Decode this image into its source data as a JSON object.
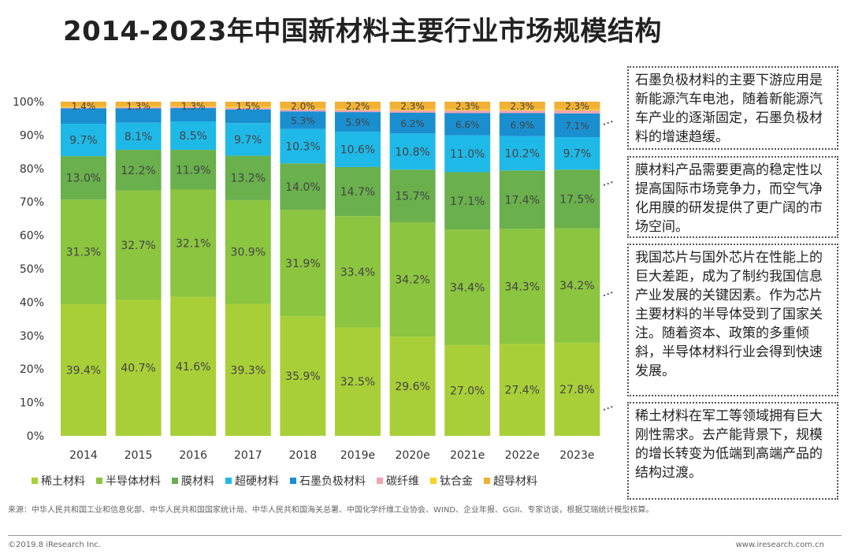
{
  "title": "2014-2023年中国新材料主要行业市场规模结构",
  "chart_data": {
    "type": "bar",
    "stacked": true,
    "categories": [
      "2014",
      "2015",
      "2016",
      "2017",
      "2018",
      "2019e",
      "2020e",
      "2021e",
      "2022e",
      "2023e"
    ],
    "y_ticks": [
      "0%",
      "10%",
      "20%",
      "30%",
      "40%",
      "50%",
      "60%",
      "70%",
      "80%",
      "90%",
      "100%"
    ],
    "ylim": [
      0,
      100
    ],
    "series": [
      {
        "name": "稀土材料",
        "color": "#a9cf38",
        "values": [
          39.4,
          40.7,
          41.6,
          39.3,
          35.9,
          32.5,
          29.6,
          27.0,
          27.4,
          27.8
        ],
        "labels": [
          "39.4%",
          "40.7%",
          "41.6%",
          "39.3%",
          "35.9%",
          "32.5%",
          "29.6%",
          "27.0%",
          "27.4%",
          "27.8%"
        ]
      },
      {
        "name": "半导体材料",
        "color": "#8cc540",
        "values": [
          31.3,
          32.7,
          32.1,
          30.9,
          31.9,
          33.4,
          34.2,
          34.4,
          34.3,
          34.2
        ],
        "labels": [
          "31.3%",
          "32.7%",
          "32.1%",
          "30.9%",
          "31.9%",
          "33.4%",
          "34.2%",
          "34.4%",
          "34.3%",
          "34.2%"
        ]
      },
      {
        "name": "膜材料",
        "color": "#6ab04c",
        "values": [
          13.0,
          12.2,
          11.9,
          13.2,
          14.0,
          14.7,
          15.7,
          17.1,
          17.4,
          17.5
        ],
        "labels": [
          "13.0%",
          "12.2%",
          "11.9%",
          "13.2%",
          "14.0%",
          "14.7%",
          "15.7%",
          "17.1%",
          "17.4%",
          "17.5%"
        ]
      },
      {
        "name": "超硬材料",
        "color": "#1fb9e8",
        "values": [
          9.7,
          8.1,
          8.5,
          9.7,
          10.3,
          10.6,
          10.8,
          11.0,
          10.2,
          9.7
        ],
        "labels": [
          "9.7%",
          "8.1%",
          "8.5%",
          "9.7%",
          "10.3%",
          "10.6%",
          "10.8%",
          "11.0%",
          "10.2%",
          "9.7%"
        ]
      },
      {
        "name": "石墨负极材料",
        "color": "#1a8fd0",
        "values": [
          4.6,
          4.3,
          4.0,
          4.1,
          5.3,
          5.9,
          6.2,
          6.6,
          6.9,
          7.1
        ],
        "labels": [
          "",
          "",
          "",
          "",
          "5.3%",
          "5.9%",
          "6.2%",
          "6.6%",
          "6.9%",
          "7.1%"
        ]
      },
      {
        "name": "碳纤维",
        "color": "#f4a3b0",
        "values": [
          0.3,
          0.4,
          0.4,
          0.5,
          0.6,
          0.6,
          0.7,
          0.8,
          0.8,
          0.9
        ],
        "labels": [
          "",
          "",
          "",
          "",
          "",
          "",
          "",
          "",
          "",
          ""
        ]
      },
      {
        "name": "钛合金",
        "color": "#f7d21e",
        "values": [
          0.3,
          0.3,
          0.2,
          0.3,
          0.3,
          0.3,
          0.3,
          0.3,
          0.3,
          0.3
        ],
        "labels": [
          "",
          "",
          "",
          "",
          "",
          "",
          "",
          "",
          "",
          ""
        ]
      },
      {
        "name": "超导材料",
        "color": "#f2b134",
        "values": [
          1.4,
          1.3,
          1.3,
          1.5,
          2.0,
          2.2,
          2.3,
          2.3,
          2.3,
          2.3
        ],
        "labels": [
          "1.4%",
          "1.3%",
          "1.3%",
          "1.5%",
          "2.0%",
          "2.2%",
          "2.3%",
          "2.3%",
          "2.3%",
          "2.3%"
        ]
      }
    ]
  },
  "notes": [
    "石墨负极材料的主要下游应用是新能源汽车电池，随着新能源汽车产业的逐渐固定，石墨负极材料的增速趋缓。",
    "膜材料产品需要更高的稳定性以提高国际市场竞争力，而空气净化用膜的研发提供了更广阔的市场空间。",
    "我国芯片与国外芯片在性能上的巨大差距，成为了制约我国信息产业发展的关键因素。作为芯片主要材料的半导体受到了国家关注。随着资本、政策的多重倾斜，半导体材料行业会得到快速发展。",
    "稀土材料在军工等领域拥有巨大刚性需求。去产能背景下，规模的增长转变为低端到高端产品的结构过渡。"
  ],
  "source": "来源：中华人民共和国工业和信息化部、中华人民共和国国家统计局、中华人民共和国海关总署、中国化学纤维工业协会、WIND、企业年报、GGII、专家访谈，根据艾瑞统计模型核算。",
  "copyright": "©2019.8 iResearch Inc.",
  "website": "www.iresearch.com.cn"
}
